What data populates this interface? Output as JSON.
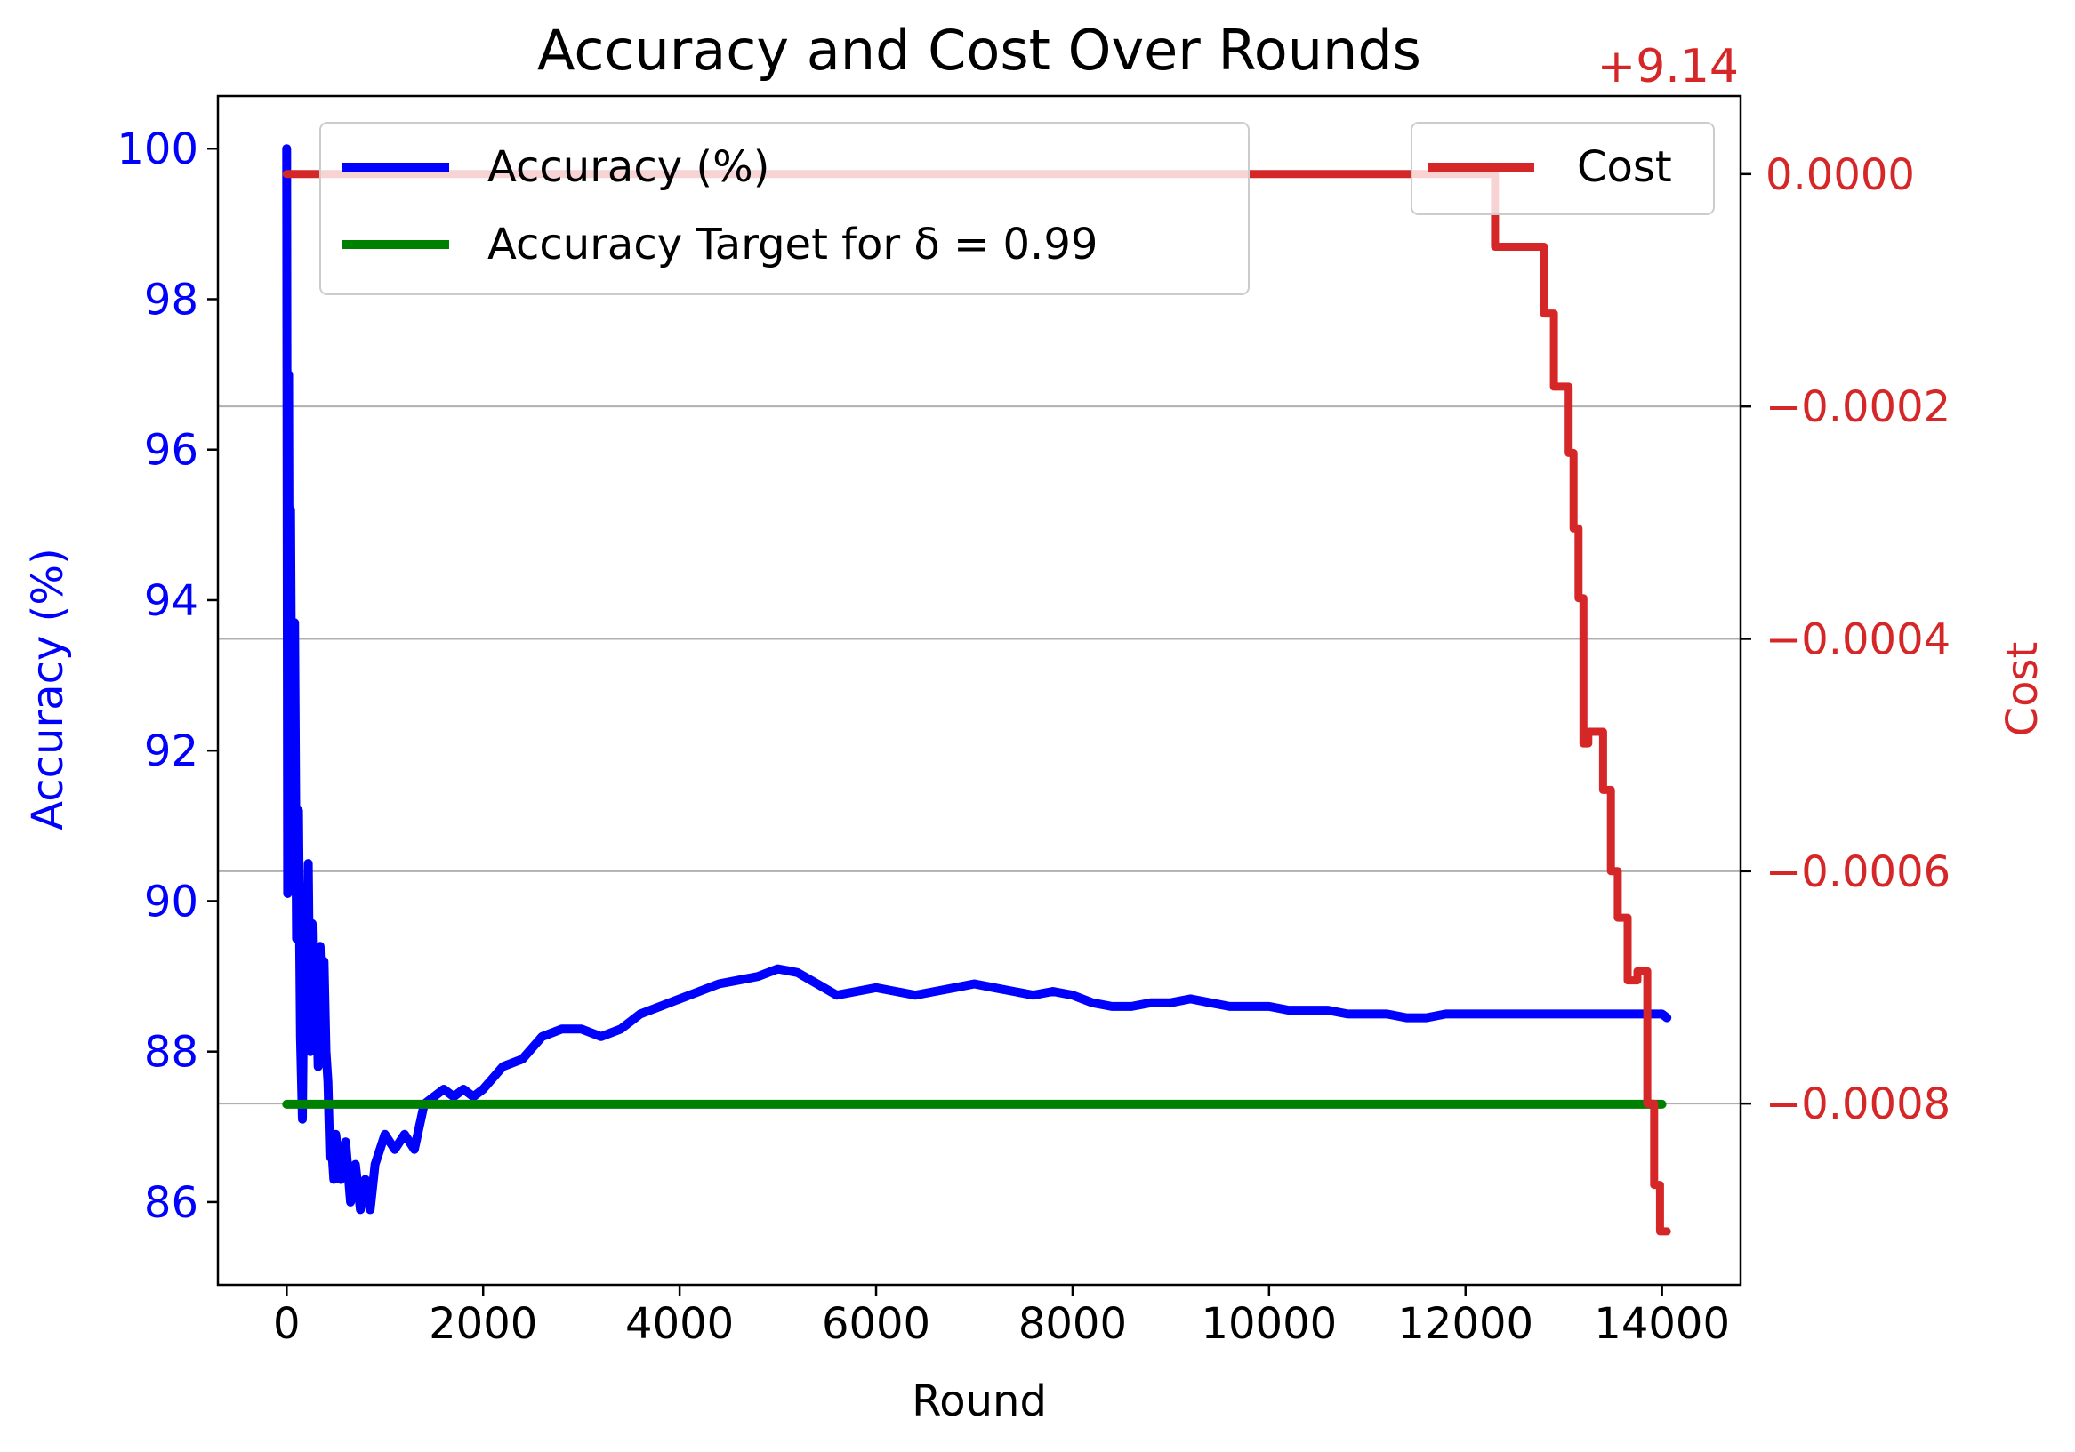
{
  "chart_data": {
    "type": "line",
    "title": "Accuracy and Cost Over Rounds",
    "xlabel": "Round",
    "ylabel_left": "Accuracy (%)",
    "ylabel_right": "Cost",
    "right_axis_offset_label": "+9.14",
    "xlim": [
      -700,
      14800
    ],
    "ylim_left": [
      84.9,
      100.7
    ],
    "ylim_right": [
      -0.000956,
      6.72e-05
    ],
    "x_ticks": [
      0,
      2000,
      4000,
      6000,
      8000,
      10000,
      12000,
      14000
    ],
    "x_tick_labels": [
      "0",
      "2000",
      "4000",
      "6000",
      "8000",
      "10000",
      "12000",
      "14000"
    ],
    "y_left_ticks": [
      86,
      88,
      90,
      92,
      94,
      96,
      98,
      100
    ],
    "y_left_tick_labels": [
      "86",
      "88",
      "90",
      "92",
      "94",
      "96",
      "98",
      "100"
    ],
    "y_right_ticks": [
      0,
      -0.0002,
      -0.0004,
      -0.0006,
      -0.0008
    ],
    "y_right_tick_labels": [
      "0.0000",
      "−0.0002",
      "−0.0004",
      "−0.0006",
      "−0.0008"
    ],
    "grid": "horizontal lines at right-axis ticks",
    "legend_left": {
      "placement": "top-left",
      "entries": [
        "Accuracy (%)",
        "Accuracy Target for δ = 0.99"
      ]
    },
    "legend_right": {
      "placement": "top-right",
      "entries": [
        "Cost"
      ]
    },
    "series": [
      {
        "name": "Accuracy (%)",
        "axis": "left",
        "color": "#0000ff",
        "x": [
          0,
          10,
          20,
          30,
          40,
          60,
          80,
          100,
          120,
          140,
          160,
          180,
          200,
          220,
          240,
          260,
          280,
          300,
          320,
          340,
          360,
          380,
          400,
          420,
          440,
          460,
          480,
          500,
          550,
          600,
          650,
          700,
          750,
          800,
          850,
          900,
          1000,
          1100,
          1200,
          1300,
          1400,
          1500,
          1600,
          1700,
          1800,
          1900,
          2000,
          2200,
          2400,
          2600,
          2800,
          3000,
          3200,
          3400,
          3600,
          3800,
          4000,
          4200,
          4400,
          4600,
          4800,
          5000,
          5200,
          5400,
          5600,
          5800,
          6000,
          6200,
          6400,
          6600,
          6800,
          7000,
          7200,
          7400,
          7600,
          7800,
          8000,
          8200,
          8400,
          8600,
          8800,
          9000,
          9200,
          9400,
          9600,
          9800,
          10000,
          10200,
          10400,
          10600,
          10800,
          11000,
          11200,
          11400,
          11600,
          11800,
          12000,
          12200,
          12400,
          12600,
          12800,
          13000,
          13200,
          13400,
          13600,
          13800,
          14000,
          14050
        ],
        "values": [
          100,
          90.1,
          97,
          91.5,
          95.2,
          90.2,
          93.7,
          89.5,
          91.2,
          88.2,
          87.1,
          89.8,
          88.4,
          90.5,
          88.0,
          89.7,
          88.2,
          89.0,
          87.8,
          89.4,
          88.4,
          89.2,
          88.0,
          87.6,
          86.6,
          86.7,
          86.3,
          86.9,
          86.3,
          86.8,
          86.0,
          86.5,
          85.9,
          86.3,
          85.9,
          86.5,
          86.9,
          86.7,
          86.9,
          86.7,
          87.3,
          87.4,
          87.5,
          87.4,
          87.5,
          87.4,
          87.5,
          87.8,
          87.9,
          88.2,
          88.3,
          88.3,
          88.2,
          88.3,
          88.5,
          88.6,
          88.7,
          88.8,
          88.9,
          88.95,
          89.0,
          89.1,
          89.05,
          88.9,
          88.75,
          88.8,
          88.85,
          88.8,
          88.75,
          88.8,
          88.85,
          88.9,
          88.85,
          88.8,
          88.75,
          88.8,
          88.75,
          88.65,
          88.6,
          88.6,
          88.65,
          88.65,
          88.7,
          88.65,
          88.6,
          88.6,
          88.6,
          88.55,
          88.55,
          88.55,
          88.5,
          88.5,
          88.5,
          88.45,
          88.45,
          88.5,
          88.5,
          88.5,
          88.5,
          88.5,
          88.5,
          88.5,
          88.5,
          88.5,
          88.5,
          88.5,
          88.5,
          88.45
        ]
      },
      {
        "name": "Accuracy Target for δ = 0.99",
        "axis": "left",
        "color": "#008000",
        "x": [
          0,
          14000
        ],
        "values": [
          87.3,
          87.3
        ]
      },
      {
        "name": "Cost",
        "axis": "right",
        "color": "#d62728",
        "x": [
          0,
          12300,
          12300,
          12800,
          12800,
          12900,
          12900,
          13050,
          13050,
          13100,
          13100,
          13150,
          13150,
          13200,
          13200,
          13250,
          13250,
          13400,
          13400,
          13480,
          13480,
          13550,
          13550,
          13650,
          13650,
          13750,
          13750,
          13850,
          13850,
          13920,
          13920,
          13980,
          13980,
          14050
        ],
        "values": [
          0,
          0,
          -6.25e-05,
          -6.25e-05,
          -0.00012,
          -0.00012,
          -0.000183,
          -0.000183,
          -0.00024,
          -0.00024,
          -0.000305,
          -0.000305,
          -0.000365,
          -0.000365,
          -0.00049,
          -0.00049,
          -0.00048,
          -0.00048,
          -0.00053,
          -0.00053,
          -0.0006,
          -0.0006,
          -0.00064,
          -0.00064,
          -0.000694,
          -0.000694,
          -0.000686,
          -0.000686,
          -0.0008,
          -0.0008,
          -0.00087,
          -0.00087,
          -0.00091,
          -0.00091
        ]
      }
    ]
  }
}
